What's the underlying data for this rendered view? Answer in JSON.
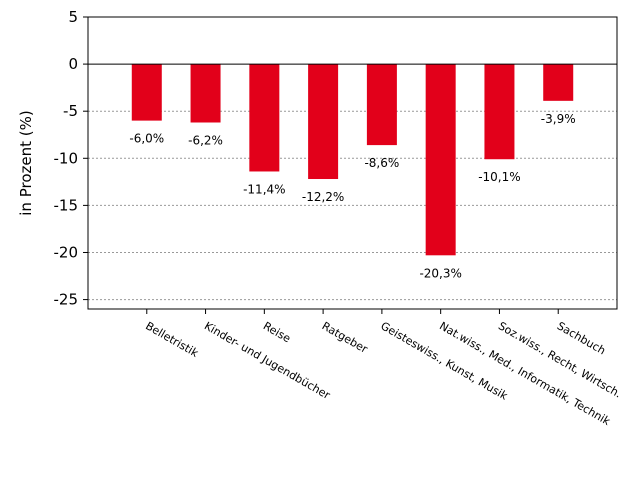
{
  "chart_data": {
    "type": "bar",
    "categories": [
      "Belletristik",
      "Kinder- und Jugendbücher",
      "Reise",
      "Ratgeber",
      "Geisteswiss., Kunst, Musik",
      "Nat.wiss., Med., Informatik, Technik",
      "Soz.wiss., Recht, Wirtsch.",
      "Sachbuch"
    ],
    "values": [
      -6.0,
      -6.2,
      -11.4,
      -12.2,
      -8.6,
      -20.3,
      -10.1,
      -3.9
    ],
    "data_labels": [
      "-6,0%",
      "-6,2%",
      "-11,4%",
      "-12,2%",
      "-8,6%",
      "-20,3%",
      "-10,1%",
      "-3,9%"
    ],
    "ylabel": "in Prozent (%)",
    "ylim": [
      -26,
      5
    ],
    "yticks": [
      5,
      0,
      -5,
      -10,
      -15,
      -20,
      -25
    ],
    "ytick_labels": [
      "5",
      "0",
      "-5",
      "-10",
      "-15",
      "-20",
      "-25"
    ],
    "grid": "horizontal dotted",
    "legend": "none",
    "bar_color": "#e2001a"
  }
}
